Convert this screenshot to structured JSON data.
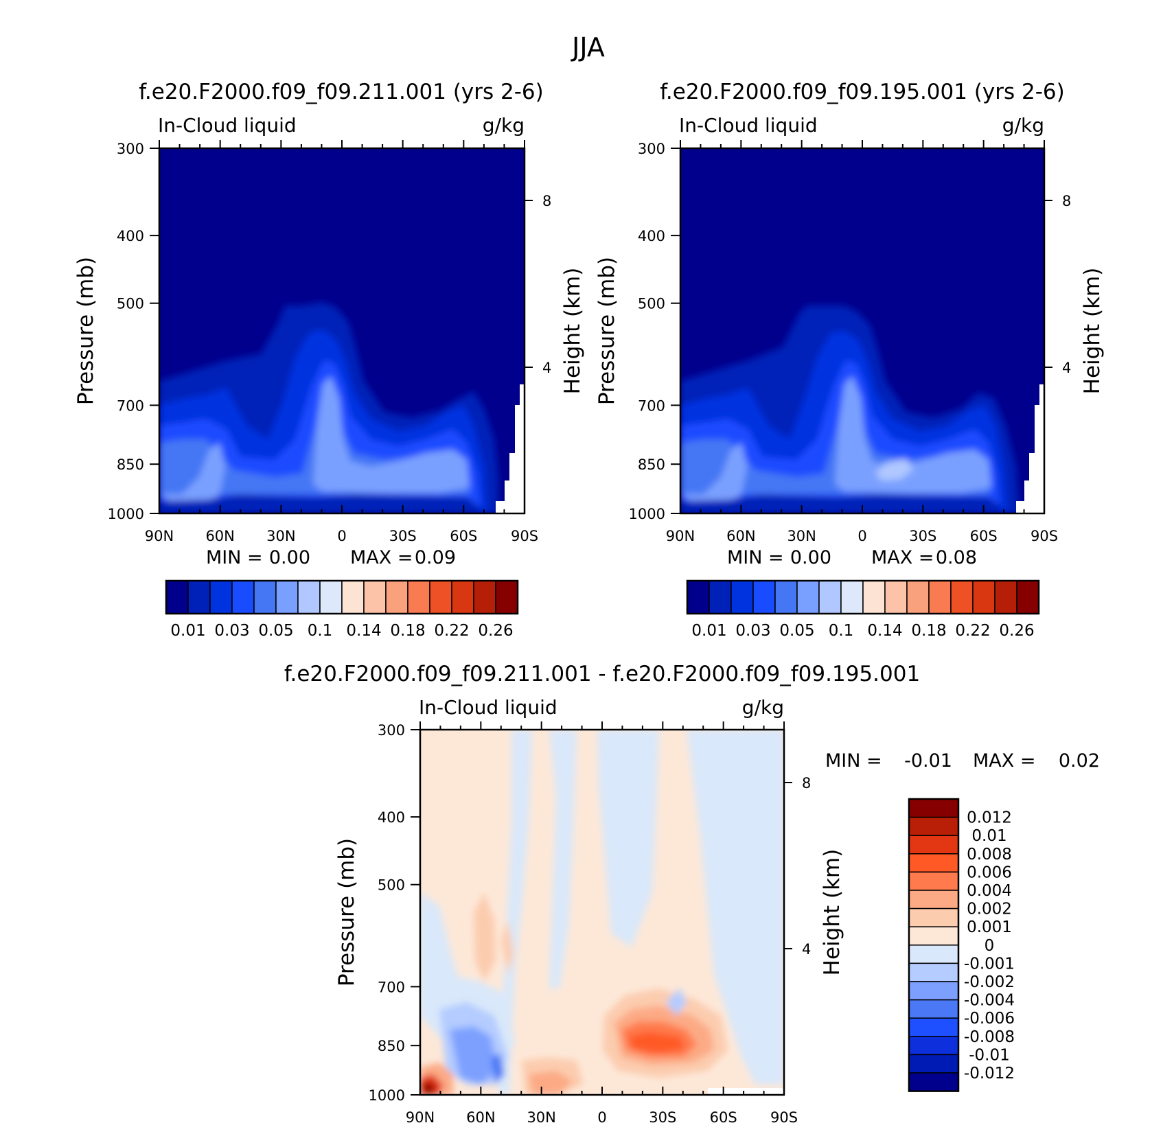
{
  "main_title": "JJA",
  "chart_data": [
    {
      "type": "heatmap",
      "title": "f.e20.F2000.f09_f09.211.001 (yrs 2-6)",
      "left_label": "In-Cloud liquid",
      "units": "g/kg",
      "ylabel": "Pressure (mb)",
      "y2label": "Height (km)",
      "x_ticks": [
        "90N",
        "60N",
        "30N",
        "0",
        "30S",
        "60S",
        "90S"
      ],
      "x_values": [
        90,
        60,
        30,
        0,
        -30,
        -60,
        -90
      ],
      "y_ticks": [
        "300",
        "400",
        "500",
        "700",
        "850",
        "1000"
      ],
      "y_values": [
        300,
        400,
        500,
        700,
        850,
        1000
      ],
      "y2_ticks": [
        "8",
        "4"
      ],
      "y2_values": [
        8,
        4
      ],
      "ylim": [
        1000,
        300
      ],
      "min_label": "MIN =",
      "min_value": "0.00",
      "max_label": "MAX =",
      "max_value": "0.09",
      "colorbar_labels": [
        "0.01",
        "0.03",
        "0.05",
        "0.1",
        "0.14",
        "0.18",
        "0.22",
        "0.26"
      ]
    },
    {
      "type": "heatmap",
      "title": "f.e20.F2000.f09_f09.195.001 (yrs 2-6)",
      "left_label": "In-Cloud liquid",
      "units": "g/kg",
      "ylabel": "Pressure (mb)",
      "y2label": "Height (km)",
      "x_ticks": [
        "90N",
        "60N",
        "30N",
        "0",
        "30S",
        "60S",
        "90S"
      ],
      "x_values": [
        90,
        60,
        30,
        0,
        -30,
        -60,
        -90
      ],
      "y_ticks": [
        "300",
        "400",
        "500",
        "700",
        "850",
        "1000"
      ],
      "y_values": [
        300,
        400,
        500,
        700,
        850,
        1000
      ],
      "y2_ticks": [
        "8",
        "4"
      ],
      "y2_values": [
        8,
        4
      ],
      "ylim": [
        1000,
        300
      ],
      "min_label": "MIN =",
      "min_value": "0.00",
      "max_label": "MAX =",
      "max_value": "0.08",
      "colorbar_labels": [
        "0.01",
        "0.03",
        "0.05",
        "0.1",
        "0.14",
        "0.18",
        "0.22",
        "0.26"
      ]
    },
    {
      "type": "heatmap",
      "title": "f.e20.F2000.f09_f09.211.001 - f.e20.F2000.f09_f09.195.001",
      "left_label": "In-Cloud liquid",
      "units": "g/kg",
      "ylabel": "Pressure (mb)",
      "y2label": "Height (km)",
      "x_ticks": [
        "90N",
        "60N",
        "30N",
        "0",
        "30S",
        "60S",
        "90S"
      ],
      "x_values": [
        90,
        60,
        30,
        0,
        -30,
        -60,
        -90
      ],
      "y_ticks": [
        "300",
        "400",
        "500",
        "700",
        "850",
        "1000"
      ],
      "y_values": [
        300,
        400,
        500,
        700,
        850,
        1000
      ],
      "y2_ticks": [
        "8",
        "4"
      ],
      "y2_values": [
        8,
        4
      ],
      "ylim": [
        1000,
        300
      ],
      "min_label": "MIN =",
      "min_value": "-0.01",
      "max_label": "MAX =",
      "max_value": "0.02",
      "colorbar_labels": [
        "0.012",
        "0.01",
        "0.008",
        "0.006",
        "0.004",
        "0.002",
        "0.001",
        "0",
        "-0.001",
        "-0.002",
        "-0.004",
        "-0.006",
        "-0.008",
        "-0.01",
        "-0.012"
      ]
    }
  ],
  "colors": {
    "abs_palette": [
      "#00008c",
      "#0021b8",
      "#0033e0",
      "#1a4cff",
      "#4577f4",
      "#7aa0ff",
      "#b0c8ff",
      "#dde9fb",
      "#fde3d4",
      "#fcc3a8",
      "#f9a07c",
      "#f97b51",
      "#ef5126",
      "#d93712",
      "#b51f08",
      "#870000"
    ],
    "diff_palette": [
      "#870000",
      "#b81f06",
      "#e33612",
      "#ff5a26",
      "#ff7b4d",
      "#fcaa85",
      "#fcccaf",
      "#fde8d8",
      "#d9e8fa",
      "#b4ccff",
      "#7da0ff",
      "#4b78f4",
      "#1e50ff",
      "#0e30dc",
      "#001bb4",
      "#00008c"
    ]
  }
}
